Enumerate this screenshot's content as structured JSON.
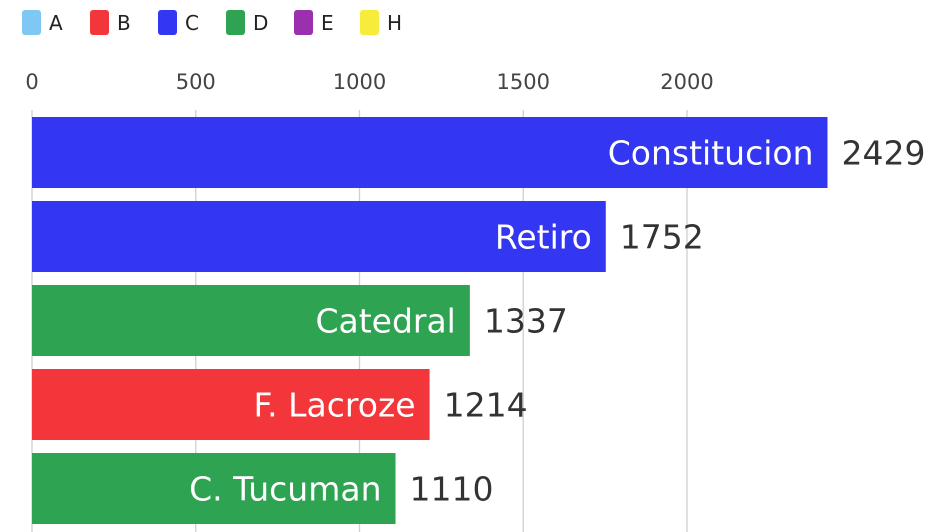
{
  "chart_data": {
    "type": "bar",
    "orientation": "horizontal",
    "legend": [
      {
        "key": "A",
        "color": "#7ec8f3"
      },
      {
        "key": "B",
        "color": "#f2363a"
      },
      {
        "key": "C",
        "color": "#3337f2"
      },
      {
        "key": "D",
        "color": "#2ea452"
      },
      {
        "key": "E",
        "color": "#9b2fae"
      },
      {
        "key": "H",
        "color": "#f7ec3b"
      }
    ],
    "legend_position": "top-left",
    "x_ticks": [
      "0",
      "500",
      "1000",
      "1500",
      "2000"
    ],
    "xlim": [
      0,
      2700
    ],
    "grid": true,
    "categories": [
      "Constitucion",
      "Retiro",
      "Catedral",
      "F. Lacroze",
      "C. Tucuman"
    ],
    "values": [
      2429,
      1752,
      1337,
      1214,
      1110
    ],
    "value_labels": [
      "2429",
      "1752",
      "1337",
      "1214",
      "1110"
    ],
    "bar_groups": [
      "C",
      "C",
      "D",
      "B",
      "D"
    ]
  }
}
